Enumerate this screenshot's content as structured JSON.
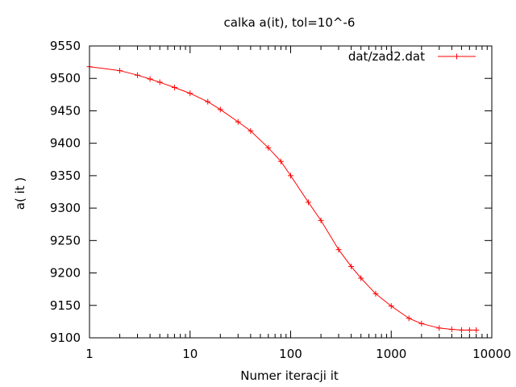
{
  "chart_data": {
    "type": "line",
    "title": "calka a(it), tol=10^-6",
    "xlabel": "Numer iteracji it",
    "ylabel": "a( it )",
    "x_scale": "log",
    "xlim": [
      1,
      10000
    ],
    "ylim": [
      9100,
      9550
    ],
    "x_ticks": [
      "1",
      "10",
      "100",
      "1000",
      "10000"
    ],
    "y_ticks": [
      "9100",
      "9150",
      "9200",
      "9250",
      "9300",
      "9350",
      "9400",
      "9450",
      "9500",
      "9550"
    ],
    "grid": false,
    "legend_position": "top-right",
    "series": [
      {
        "name": "dat/zad2.dat",
        "color": "#ff0000",
        "marker": "plus",
        "x": [
          1,
          2,
          3,
          4,
          5,
          7,
          10,
          15,
          20,
          30,
          40,
          60,
          80,
          100,
          150,
          200,
          300,
          400,
          500,
          700,
          1000,
          1500,
          2000,
          3000,
          4000,
          5000,
          6000,
          7000
        ],
        "y": [
          9518,
          9512,
          9505,
          9499,
          9494,
          9486,
          9477,
          9464,
          9452,
          9433,
          9419,
          9393,
          9372,
          9350,
          9309,
          9281,
          9236,
          9210,
          9192,
          9168,
          9149,
          9130,
          9122,
          9115,
          9113,
          9112,
          9112,
          9112
        ]
      }
    ]
  }
}
